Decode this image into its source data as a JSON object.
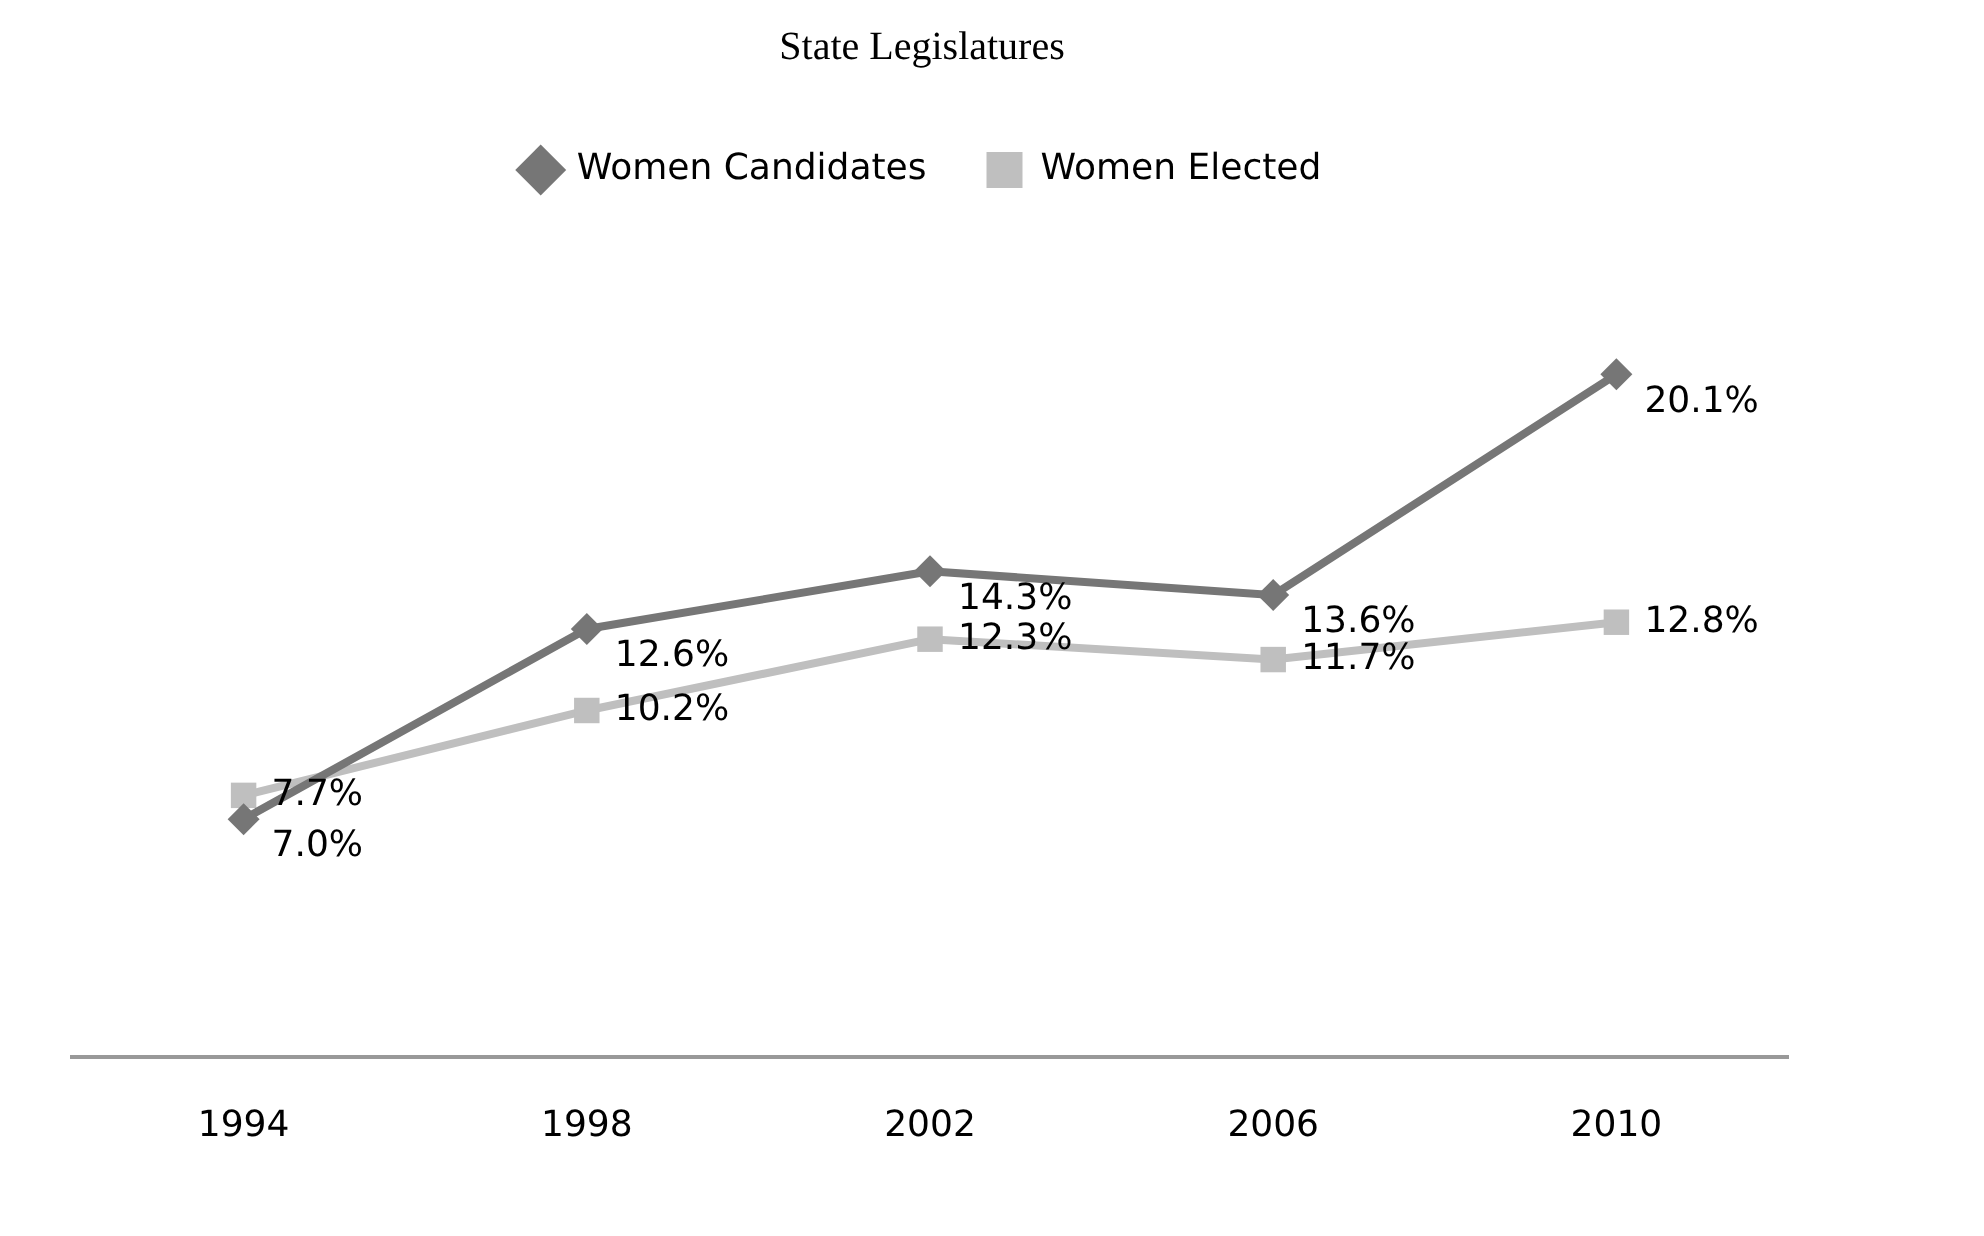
{
  "chart_data": {
    "type": "line",
    "title": "State Legislatures",
    "categories": [
      "1994",
      "1998",
      "2002",
      "2006",
      "2010"
    ],
    "series": [
      {
        "name": "Women Candidates",
        "color": "#767676",
        "marker": "diamond",
        "values": [
          7.0,
          12.6,
          14.3,
          13.6,
          20.1
        ],
        "value_labels": [
          "7.0%",
          "12.6%",
          "14.3%",
          "13.6%",
          "20.1%"
        ]
      },
      {
        "name": "Women Elected",
        "color": "#bfbfbf",
        "marker": "square",
        "values": [
          7.7,
          10.2,
          12.3,
          11.7,
          12.8
        ],
        "value_labels": [
          "7.7%",
          "10.2%",
          "12.3%",
          "11.7%",
          "12.8%"
        ]
      }
    ],
    "relative": false,
    "grid": false,
    "legend": "top"
  }
}
